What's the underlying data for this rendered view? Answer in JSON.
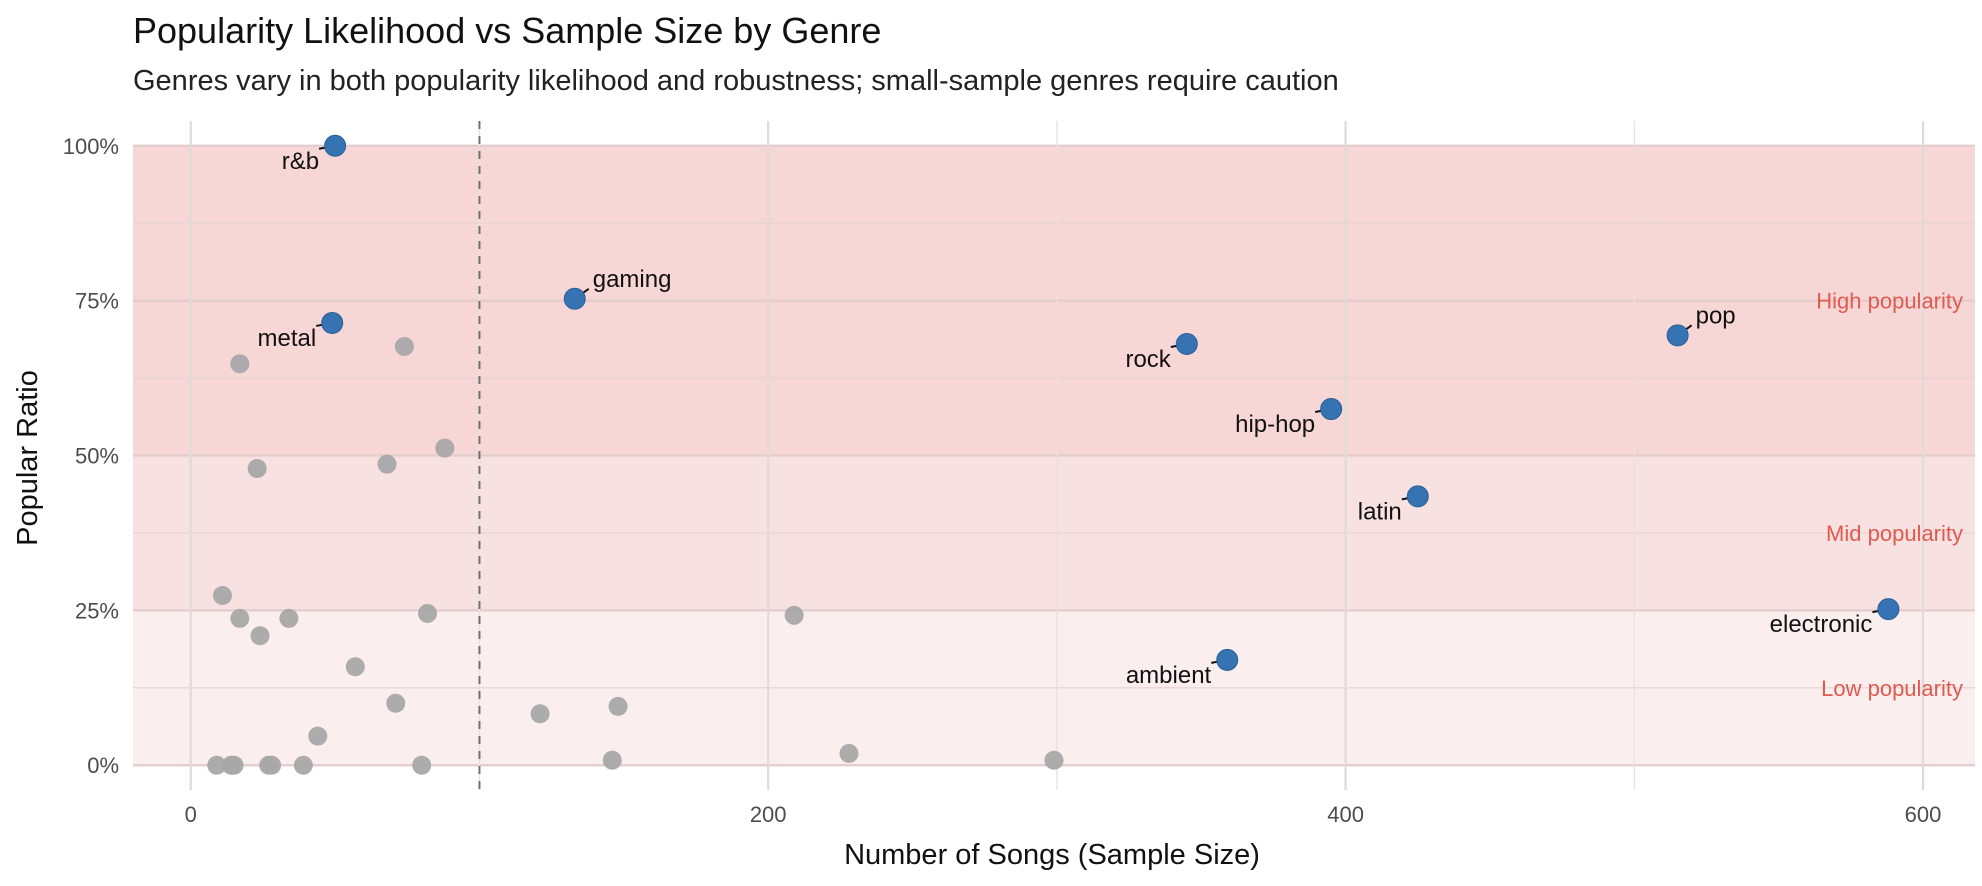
{
  "chart_data": {
    "type": "scatter",
    "title": "Popularity Likelihood vs Sample Size by Genre",
    "subtitle": "Genres vary in both popularity likelihood and robustness; small-sample genres require caution",
    "xlabel": "Number of Songs (Sample Size)",
    "ylabel": "Popular Ratio",
    "xlim": [
      -20,
      618
    ],
    "ylim": [
      -0.04,
      1.04
    ],
    "x_ticks": [
      0,
      200,
      400,
      600
    ],
    "x_tick_labels": [
      "0",
      "200",
      "400",
      "600"
    ],
    "y_ticks": [
      0,
      0.25,
      0.5,
      0.75,
      1.0
    ],
    "y_tick_labels": [
      "0%",
      "25%",
      "50%",
      "75%",
      "100%"
    ],
    "threshold_x": 100,
    "bands": [
      {
        "name": "Low popularity",
        "from": 0,
        "to": 0.25,
        "color": "#fbeeee"
      },
      {
        "name": "Mid popularity",
        "from": 0.25,
        "to": 0.5,
        "color": "#f8e1e1"
      },
      {
        "name": "High popularity",
        "from": 0.5,
        "to": 1.0,
        "color": "#f7d7d5"
      }
    ],
    "highlighted": [
      {
        "genre": "r&b",
        "songs": 50,
        "ratio": 1.0,
        "label_pos": "bottom-left"
      },
      {
        "genre": "gaming",
        "songs": 133,
        "ratio": 0.753,
        "label_pos": "top-right"
      },
      {
        "genre": "metal",
        "songs": 49,
        "ratio": 0.714,
        "label_pos": "bottom-left"
      },
      {
        "genre": "rock",
        "songs": 345,
        "ratio": 0.68,
        "label_pos": "bottom-left"
      },
      {
        "genre": "pop",
        "songs": 515,
        "ratio": 0.694,
        "label_pos": "top-right"
      },
      {
        "genre": "hip-hop",
        "songs": 395,
        "ratio": 0.575,
        "label_pos": "bottom-left"
      },
      {
        "genre": "latin",
        "songs": 425,
        "ratio": 0.434,
        "label_pos": "bottom-left"
      },
      {
        "genre": "electronic",
        "songs": 588,
        "ratio": 0.252,
        "label_pos": "bottom-left"
      },
      {
        "genre": "ambient",
        "songs": 359,
        "ratio": 0.17,
        "label_pos": "bottom-left"
      }
    ],
    "other_points": [
      {
        "songs": 74,
        "ratio": 0.676
      },
      {
        "songs": 17,
        "ratio": 0.648
      },
      {
        "songs": 23,
        "ratio": 0.479
      },
      {
        "songs": 68,
        "ratio": 0.486
      },
      {
        "songs": 88,
        "ratio": 0.512
      },
      {
        "songs": 11,
        "ratio": 0.274
      },
      {
        "songs": 17,
        "ratio": 0.237
      },
      {
        "songs": 24,
        "ratio": 0.209
      },
      {
        "songs": 34,
        "ratio": 0.237
      },
      {
        "songs": 82,
        "ratio": 0.245
      },
      {
        "songs": 57,
        "ratio": 0.159
      },
      {
        "songs": 71,
        "ratio": 0.1
      },
      {
        "songs": 44,
        "ratio": 0.047
      },
      {
        "songs": 9,
        "ratio": 0.0
      },
      {
        "songs": 14,
        "ratio": 0.0
      },
      {
        "songs": 15,
        "ratio": 0.0
      },
      {
        "songs": 27,
        "ratio": 0.0
      },
      {
        "songs": 28,
        "ratio": 0.0
      },
      {
        "songs": 39,
        "ratio": 0.0
      },
      {
        "songs": 80,
        "ratio": 0.0
      },
      {
        "songs": 121,
        "ratio": 0.083
      },
      {
        "songs": 148,
        "ratio": 0.095
      },
      {
        "songs": 146,
        "ratio": 0.008
      },
      {
        "songs": 209,
        "ratio": 0.242
      },
      {
        "songs": 228,
        "ratio": 0.019
      },
      {
        "songs": 299,
        "ratio": 0.008
      }
    ],
    "colors": {
      "highlight": "#3573b3",
      "other": "#a8a8a8",
      "band_text": "#e05a4f",
      "threshold": "#707070"
    }
  }
}
